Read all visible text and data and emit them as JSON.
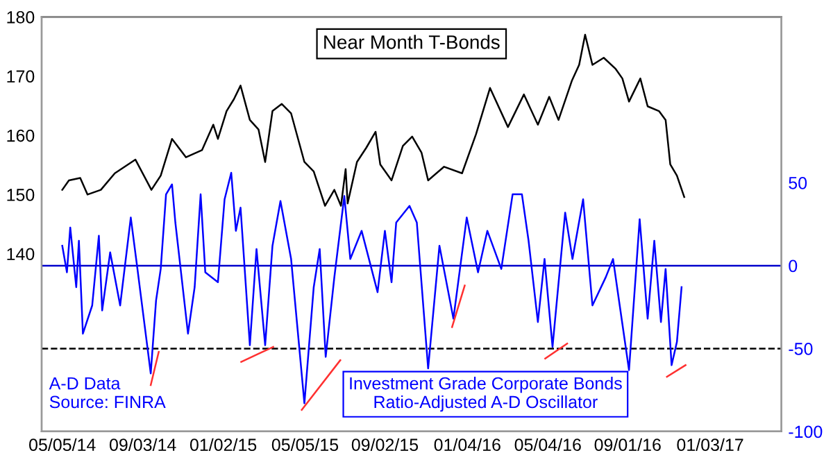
{
  "chart_data": {
    "type": "line",
    "xlim": [
      "2014-04-04",
      "2017-04-20"
    ],
    "xticks": [
      {
        "value": "2014-05-05",
        "label": "05/05/14"
      },
      {
        "value": "2014-09-03",
        "label": "09/03/14"
      },
      {
        "value": "2015-01-02",
        "label": "01/02/15"
      },
      {
        "value": "2015-05-05",
        "label": "05/05/15"
      },
      {
        "value": "2015-09-02",
        "label": "09/02/15"
      },
      {
        "value": "2016-01-04",
        "label": "01/04/16"
      },
      {
        "value": "2016-05-04",
        "label": "05/04/16"
      },
      {
        "value": "2016-09-01",
        "label": "09/01/16"
      },
      {
        "value": "2017-01-03",
        "label": "01/03/17"
      }
    ],
    "ylim": [
      110,
      180
    ],
    "yticks": [
      140,
      150,
      160,
      170,
      180
    ],
    "y2lim": [
      -100,
      150
    ],
    "y2ticks": [
      -100,
      -50,
      0,
      50
    ],
    "grid": false,
    "legend": false,
    "series": [
      {
        "name": "Near Month T-Bonds",
        "color": "#000000",
        "x": [
          "2014-05-05",
          "2014-05-15",
          "2014-06-01",
          "2014-06-12",
          "2014-07-02",
          "2014-07-23",
          "2014-08-23",
          "2014-09-16",
          "2014-09-30",
          "2014-10-17",
          "2014-11-07",
          "2014-12-01",
          "2014-12-18",
          "2014-12-25",
          "2015-01-07",
          "2015-01-18",
          "2015-01-28",
          "2015-02-11",
          "2015-02-24",
          "2015-03-06",
          "2015-03-17",
          "2015-03-31",
          "2015-04-14",
          "2015-05-04",
          "2015-05-18",
          "2015-06-04",
          "2015-06-18",
          "2015-06-28",
          "2015-07-05",
          "2015-07-08",
          "2015-07-22",
          "2015-08-05",
          "2015-08-19",
          "2015-08-26",
          "2015-09-12",
          "2015-09-29",
          "2015-10-13",
          "2015-10-27",
          "2015-11-06",
          "2015-11-30",
          "2015-12-27",
          "2016-01-17",
          "2016-02-07",
          "2016-03-05",
          "2016-03-29",
          "2016-04-19",
          "2016-05-06",
          "2016-05-20",
          "2016-06-09",
          "2016-06-20",
          "2016-06-29",
          "2016-07-10",
          "2016-07-27",
          "2016-08-14",
          "2016-08-24",
          "2016-09-03",
          "2016-09-20",
          "2016-10-01",
          "2016-10-18",
          "2016-10-28",
          "2016-11-04",
          "2016-11-14",
          "2016-11-25"
        ],
        "values": [
          150.8,
          152.4,
          152.8,
          150.0,
          150.8,
          153.6,
          155.9,
          150.8,
          153.2,
          159.4,
          156.3,
          157.5,
          161.8,
          159.4,
          164.1,
          166.1,
          168.4,
          162.6,
          161.0,
          155.5,
          164.1,
          165.3,
          163.7,
          155.5,
          153.9,
          148.1,
          150.8,
          148.1,
          154.3,
          148.5,
          155.5,
          157.9,
          160.6,
          155.1,
          152.4,
          158.2,
          159.8,
          157.1,
          152.4,
          154.7,
          153.6,
          160.2,
          168.0,
          161.4,
          166.9,
          161.8,
          166.5,
          162.6,
          169.2,
          171.9,
          177.0,
          171.9,
          173.1,
          171.2,
          169.6,
          165.7,
          169.6,
          164.9,
          164.1,
          162.6,
          155.1,
          153.2,
          149.6
        ]
      },
      {
        "name": "Investment Grade Corporate Bonds\nRatio-Adjusted A-D Oscillator",
        "color": "#0000ff",
        "axis": "y2",
        "x": [
          "2014-05-05",
          "2014-05-12",
          "2014-05-17",
          "2014-05-26",
          "2014-05-30",
          "2014-06-05",
          "2014-06-19",
          "2014-06-29",
          "2014-07-04",
          "2014-07-16",
          "2014-07-31",
          "2014-08-16",
          "2014-08-26",
          "2014-09-15",
          "2014-09-23",
          "2014-09-30",
          "2014-10-08",
          "2014-10-17",
          "2014-10-22",
          "2014-11-10",
          "2014-11-20",
          "2014-11-29",
          "2014-12-06",
          "2014-12-25",
          "2015-01-04",
          "2015-01-14",
          "2015-01-21",
          "2015-01-28",
          "2015-02-11",
          "2015-02-21",
          "2015-03-06",
          "2015-03-17",
          "2015-03-29",
          "2015-04-14",
          "2015-05-04",
          "2015-05-18",
          "2015-05-27",
          "2015-06-05",
          "2015-06-18",
          "2015-07-03",
          "2015-07-12",
          "2015-07-29",
          "2015-08-22",
          "2015-09-02",
          "2015-09-12",
          "2015-09-19",
          "2015-10-09",
          "2015-10-20",
          "2015-11-06",
          "2015-11-23",
          "2015-12-14",
          "2016-01-03",
          "2016-01-20",
          "2016-02-03",
          "2016-02-24",
          "2016-03-12",
          "2016-03-26",
          "2016-04-05",
          "2016-04-19",
          "2016-04-29",
          "2016-05-11",
          "2016-05-30",
          "2016-06-10",
          "2016-06-26",
          "2016-07-10",
          "2016-07-30",
          "2016-08-10",
          "2016-08-20",
          "2016-09-03",
          "2016-09-19",
          "2016-10-01",
          "2016-10-11",
          "2016-10-21",
          "2016-10-28",
          "2016-11-06",
          "2016-11-14",
          "2016-11-21"
        ],
        "values": [
          12,
          -4,
          23,
          -13,
          15,
          -41,
          -24,
          18,
          -27,
          8,
          -24,
          29,
          -2,
          -65,
          -21,
          -2,
          43,
          49,
          26,
          -41,
          -13,
          43,
          -4,
          -10,
          40,
          56,
          21,
          35,
          -48,
          10,
          -48,
          12,
          39,
          4,
          -83,
          -13,
          10,
          -55,
          -7,
          42,
          4,
          21,
          -16,
          21,
          -10,
          26,
          36,
          26,
          -62,
          12,
          -32,
          29,
          -4,
          21,
          -2,
          43,
          43,
          15,
          -34,
          4,
          -49,
          32,
          4,
          40,
          -24,
          -7,
          4,
          -24,
          -63,
          28,
          -32,
          15,
          -34,
          -2,
          -60,
          -46,
          -13
        ]
      },
      {
        "color": "#ff3030",
        "axis": "y2",
        "x": [
          "2014-09-15",
          "2014-09-27",
          null,
          "2015-01-29",
          "2015-03-18",
          null,
          "2015-04-30",
          "2015-06-27",
          null,
          "2015-12-12",
          "2015-12-31",
          null,
          "2016-04-30",
          "2016-06-02",
          null,
          "2016-10-30",
          "2016-11-27"
        ],
        "values": [
          -72,
          -52,
          null,
          -58,
          -49,
          null,
          -87,
          -57,
          null,
          -37,
          -12,
          null,
          -56,
          -47,
          null,
          -67,
          -60
        ]
      }
    ],
    "ref_lines": [
      {
        "axis": "y2",
        "value": 0,
        "color": "#0000cc",
        "line_style": "solid"
      },
      {
        "axis": "y2",
        "value": -50,
        "color": "#000000",
        "line_style": "dashed"
      }
    ],
    "annotations": [
      "A-D Data\nSource: FINRA"
    ]
  }
}
